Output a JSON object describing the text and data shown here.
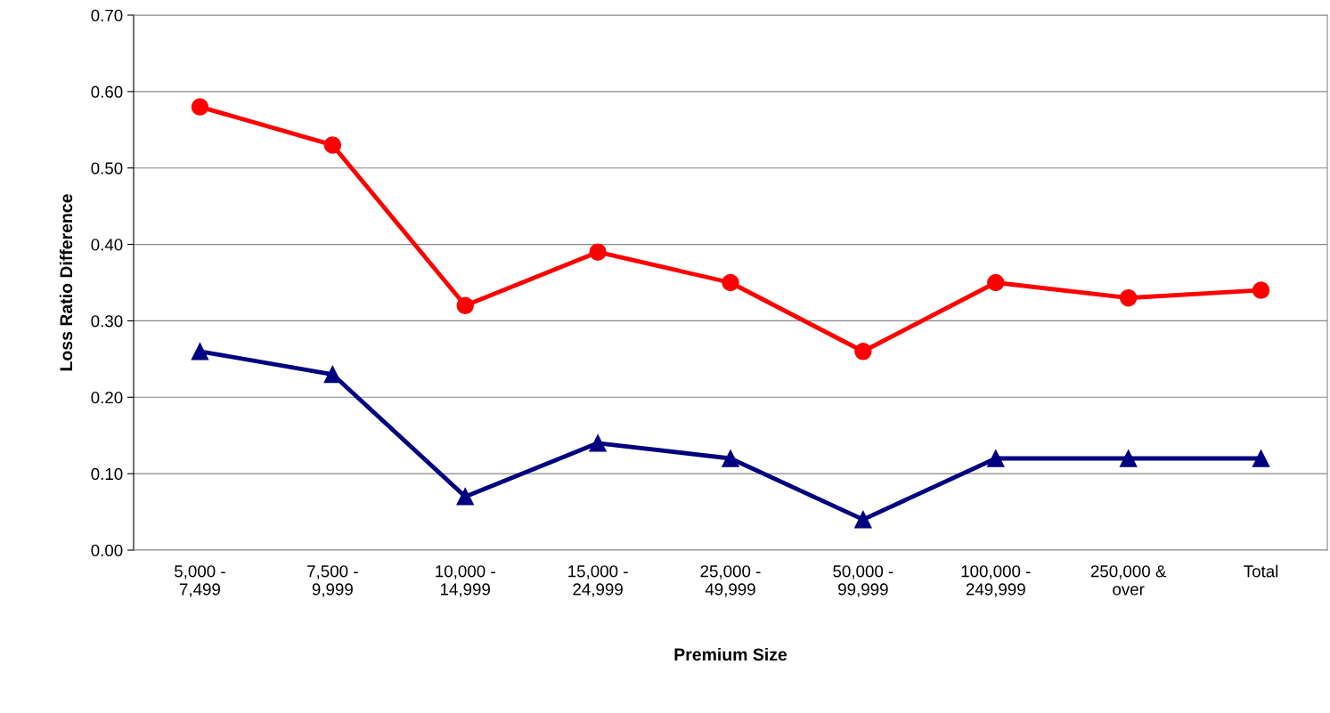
{
  "chart_data": {
    "type": "line",
    "xlabel": "Premium Size",
    "ylabel": "Loss Ratio Difference",
    "categories": [
      "5,000 -\n7,499",
      "7,500 -\n9,999",
      "10,000 -\n14,999",
      "15,000 -\n24,999",
      "25,000 -\n49,999",
      "50,000 -\n99,999",
      "100,000 -\n249,999",
      "250,000 &\nover",
      "Total"
    ],
    "series": [
      {
        "color": "#ff0000",
        "marker": "circle",
        "values": [
          0.58,
          0.53,
          0.32,
          0.39,
          0.35,
          0.26,
          0.35,
          0.33,
          0.34
        ]
      },
      {
        "color": "#000080",
        "marker": "triangle",
        "values": [
          0.26,
          0.23,
          0.07,
          0.14,
          0.12,
          0.04,
          0.12,
          0.12,
          0.12
        ]
      }
    ],
    "ylim": [
      0,
      0.7
    ],
    "yticks": [
      {
        "value": 0,
        "label": "0.00"
      },
      {
        "value": 0.1,
        "label": "0.10"
      },
      {
        "value": 0.2,
        "label": "0.20"
      },
      {
        "value": 0.3,
        "label": "0.30"
      },
      {
        "value": 0.4,
        "label": "0.40"
      },
      {
        "value": 0.5,
        "label": "0.50"
      },
      {
        "value": 0.6,
        "label": "0.60"
      },
      {
        "value": 0.7,
        "label": "0.70"
      }
    ],
    "grid": "y",
    "line_style": "solid"
  }
}
